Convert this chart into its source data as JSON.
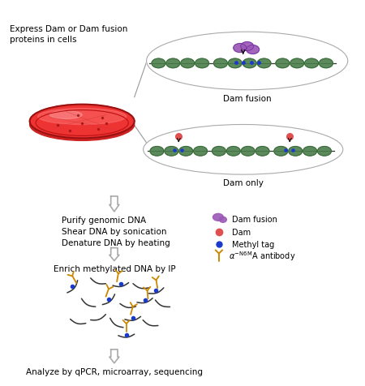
{
  "text_express": "Express Dam or Dam fusion\nproteins in cells",
  "text_dam_fusion": "Dam fusion",
  "text_dam_only": "Dam only",
  "text_purify": "Purify genomic DNA\nShear DNA by sonication\nDenature DNA by heating",
  "text_enrich": "Enrich methylated DNA by IP",
  "text_analyze": "Analyze by qPCR, microarray, sequencing",
  "legend_dam_fusion": "Dam fusion",
  "legend_dam": "Dam",
  "legend_methyl": "Methyl tag",
  "legend_antibody": "A antibody",
  "nucleosome_color": "#5c8a5c",
  "nucleosome_dark": "#3a6b3a",
  "dna_line_color": "#333333",
  "dam_fusion_color": "#9b59b6",
  "dam_color": "#e05050",
  "methyl_color": "#1a3acc",
  "antibody_color": "#cc8800",
  "petri_fill": "#dd2222",
  "petri_rim": "#bb1111",
  "petri_highlight": "#ee8888",
  "background": "#ffffff",
  "arrow_ec": "#aaaaaa",
  "line_connect": "#888888",
  "ellipse_edge": "#aaaaaa"
}
